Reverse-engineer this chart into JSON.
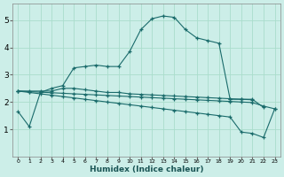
{
  "background_color": "#cceee8",
  "grid_color": "#aaddcc",
  "line_color": "#1a6b6b",
  "xlim": [
    -0.5,
    23.5
  ],
  "ylim": [
    0,
    5.6
  ],
  "xticks": [
    0,
    1,
    2,
    3,
    4,
    5,
    6,
    7,
    8,
    9,
    10,
    11,
    12,
    13,
    14,
    15,
    16,
    17,
    18,
    19,
    20,
    21,
    22,
    23
  ],
  "yticks": [
    1,
    2,
    3,
    4,
    5
  ],
  "xlabel": "Humidex (Indice chaleur)",
  "line1_x": [
    0,
    1,
    2,
    3,
    4,
    5,
    6,
    7,
    8,
    9,
    10,
    11,
    12,
    13,
    14,
    15,
    16,
    17,
    18,
    19,
    20,
    21,
    22
  ],
  "line1_y": [
    1.65,
    1.1,
    2.35,
    2.5,
    2.6,
    3.25,
    3.3,
    3.35,
    3.3,
    3.3,
    3.85,
    4.65,
    5.05,
    5.15,
    5.1,
    4.65,
    4.35,
    4.25,
    4.15,
    2.1,
    2.1,
    2.1,
    1.8
  ],
  "line2_x": [
    0,
    1,
    2,
    3,
    4,
    5,
    6,
    7,
    8,
    9,
    10,
    11,
    12,
    13,
    14,
    15,
    16,
    17,
    18,
    19,
    20,
    21
  ],
  "line2_y": [
    2.4,
    2.4,
    2.4,
    2.4,
    2.5,
    2.5,
    2.45,
    2.4,
    2.35,
    2.35,
    2.3,
    2.28,
    2.26,
    2.24,
    2.22,
    2.2,
    2.18,
    2.16,
    2.14,
    2.12,
    2.1,
    2.08
  ],
  "line3_x": [
    0,
    1,
    2,
    3,
    4,
    5,
    6,
    7,
    8,
    9,
    10,
    11,
    12,
    13,
    14,
    15,
    16,
    17,
    18,
    19,
    20,
    21,
    22,
    23
  ],
  "line3_y": [
    2.4,
    2.38,
    2.36,
    2.34,
    2.32,
    2.3,
    2.28,
    2.26,
    2.24,
    2.22,
    2.2,
    2.18,
    2.16,
    2.14,
    2.12,
    2.1,
    2.08,
    2.06,
    2.04,
    2.02,
    2.0,
    1.98,
    1.85,
    1.75
  ],
  "line4_x": [
    0,
    1,
    2,
    3,
    4,
    5,
    6,
    7,
    8,
    9,
    10,
    11,
    12,
    13,
    14,
    15,
    16,
    17,
    18,
    19,
    20,
    21,
    22,
    23
  ],
  "line4_y": [
    2.4,
    2.35,
    2.3,
    2.25,
    2.2,
    2.15,
    2.1,
    2.05,
    2.0,
    1.95,
    1.9,
    1.85,
    1.8,
    1.75,
    1.7,
    1.65,
    1.6,
    1.55,
    1.5,
    1.45,
    0.9,
    0.85,
    0.7,
    1.75
  ]
}
